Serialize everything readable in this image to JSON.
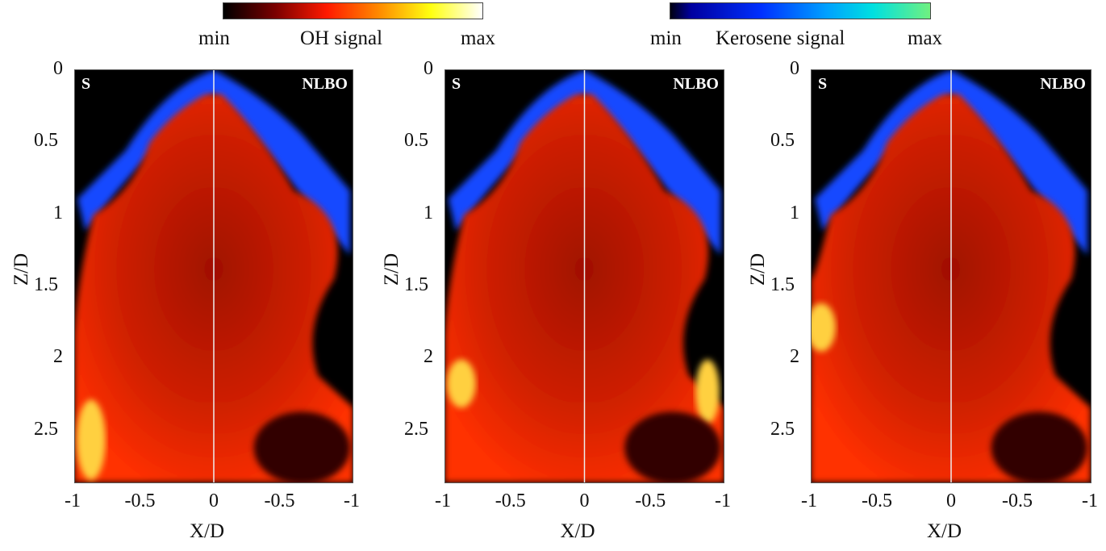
{
  "colorbars": [
    {
      "label": "OH signal",
      "min": "min",
      "max": "max",
      "colors": [
        "#000000",
        "#ff1a00",
        "#ffff10",
        "#ffffff"
      ]
    },
    {
      "label": "Kerosene signal",
      "min": "min",
      "max": "max",
      "colors": [
        "#000010",
        "#0030ff",
        "#00e0e0",
        "#70f080"
      ]
    }
  ],
  "chart_data": {
    "type": "heatmap",
    "xlabel": "X/D",
    "ylabel": "Z/D",
    "xticks": [
      "-1",
      "-0.5",
      "0",
      "-0.5",
      "-1"
    ],
    "yticks": [
      "0",
      "0.5",
      "1",
      "1.5",
      "2",
      "2.5"
    ],
    "ylim": [
      0,
      2.87
    ],
    "xlim": [
      -1,
      1
    ],
    "panels": [
      {
        "left_tag": "S",
        "right_tag": "NLBO"
      },
      {
        "left_tag": "S",
        "right_tag": "NLBO"
      },
      {
        "left_tag": "S",
        "right_tag": "NLBO"
      }
    ]
  }
}
